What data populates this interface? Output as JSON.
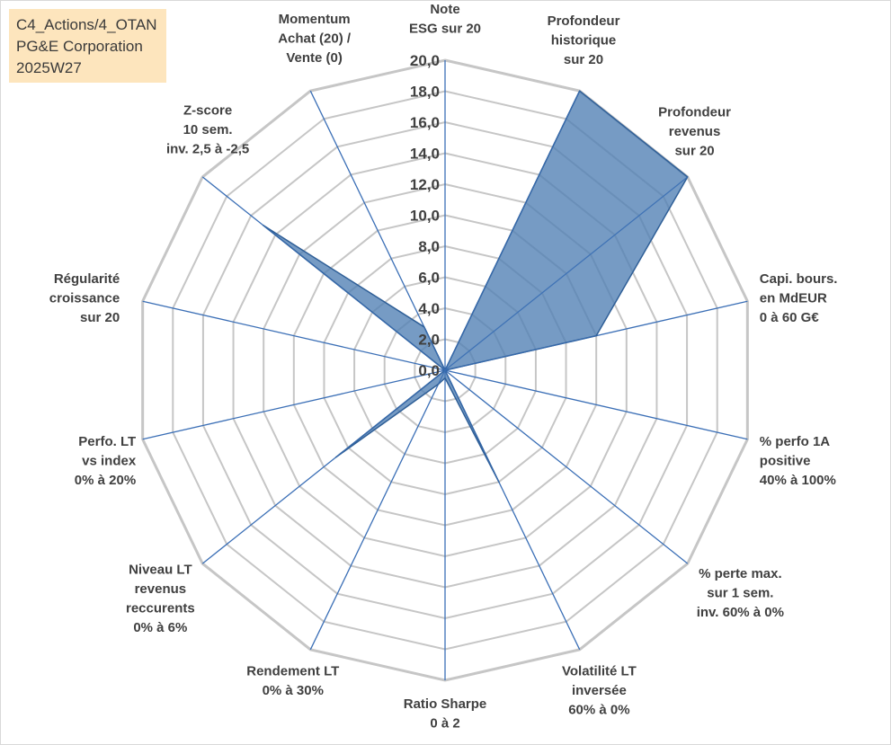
{
  "info_box": {
    "line1": "C4_Actions/4_OTAN",
    "line2": "PG&E Corporation",
    "line3": "2025W27"
  },
  "chart_data": {
    "type": "radar",
    "title": "",
    "rlim": [
      0,
      20
    ],
    "tick_step": 2,
    "tick_labels": [
      "0,0",
      "2,0",
      "4,0",
      "6,0",
      "8,0",
      "10,0",
      "12,0",
      "14,0",
      "16,0",
      "18,0",
      "20,0"
    ],
    "grid": true,
    "categories": [
      [
        "Note",
        "ESG sur 20"
      ],
      [
        "Profondeur",
        "historique",
        "sur 20"
      ],
      [
        "Profondeur",
        "revenus",
        "sur 20"
      ],
      [
        "Capi. bours.",
        "en MdEUR",
        "0 à 60 G€"
      ],
      [
        "% perfo 1A",
        "positive",
        "40% à 100%"
      ],
      [
        "% perte max.",
        "sur 1 sem.",
        "inv. 60% à 0%"
      ],
      [
        "Volatilité LT",
        "inversée",
        "60% à 0%"
      ],
      [
        "Ratio Sharpe",
        "0 à 2"
      ],
      [
        "Rendement LT",
        "0% à 30%"
      ],
      [
        "Niveau LT",
        "revenus",
        "reccurents",
        "0% à 6%"
      ],
      [
        "Perfo. LT",
        "vs index",
        "0% à 20%"
      ],
      [
        "Régularité",
        "croissance",
        "sur 20"
      ],
      [
        "Z-score",
        "10 sem.",
        "inv. 2,5 à -2,5"
      ],
      [
        "Momentum",
        "Achat (20) /",
        "Vente (0)"
      ]
    ],
    "series": [
      {
        "values": [
          0,
          20,
          20,
          10,
          0,
          0,
          8,
          0.5,
          1,
          9,
          0,
          0,
          15,
          3.1
        ],
        "fill": "#4f7fb3",
        "stroke": "#2f5f97"
      }
    ],
    "colors": {
      "grid": "#c6c6c6",
      "spokes": "#3b6fb6"
    }
  }
}
